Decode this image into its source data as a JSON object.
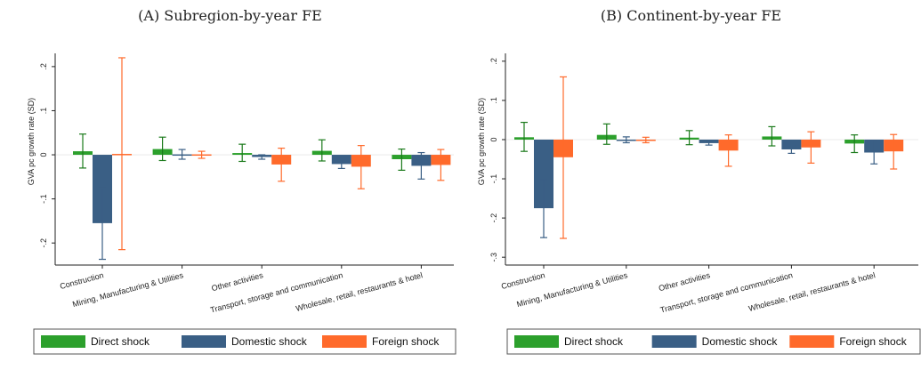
{
  "charts": [
    {
      "panel_title": "(A) Subregion-by-year FE",
      "ylabel": "GVA pc growth rate (SD)",
      "legend": [
        "Direct shock",
        "Domestic shock",
        "Foreign shock"
      ]
    },
    {
      "panel_title": "(B) Continent-by-year FE",
      "ylabel": "GVA pc growth rate (SD)",
      "legend": [
        "Direct shock",
        "Domestic shock",
        "Foreign shock"
      ]
    }
  ],
  "colors": {
    "direct": "#2ca02c",
    "domestic": "#3a5f85",
    "foreign": "#ff6a2b",
    "direct_ci": "#1b7a1b",
    "domestic_ci": "#3a5f85",
    "foreign_ci": "#ff6a2b"
  },
  "chart_data": [
    {
      "type": "bar",
      "title": "(A) Subregion-by-year FE",
      "ylabel": "GVA pc growth rate (SD)",
      "ylim": [
        -0.25,
        0.23
      ],
      "yticks": [
        -0.2,
        -0.1,
        0,
        0.1,
        0.2
      ],
      "ytick_labels": [
        "-.2",
        "-.1",
        "0",
        ".1",
        ".2"
      ],
      "categories": [
        "Construction",
        "Mining, Manufacturing & Utilities",
        "Other activities",
        "Transport, storage and communication",
        "Wholesale, retail, restaurants & hotel"
      ],
      "series": [
        {
          "name": "Direct shock",
          "values": [
            0.008,
            0.013,
            0.004,
            0.009,
            -0.01
          ],
          "ci_low": [
            -0.03,
            -0.013,
            -0.015,
            -0.014,
            -0.035
          ],
          "ci_high": [
            0.047,
            0.04,
            0.024,
            0.034,
            0.013
          ]
        },
        {
          "name": "Domestic shock",
          "values": [
            -0.155,
            0.001,
            -0.005,
            -0.021,
            -0.025
          ],
          "ci_low": [
            -0.237,
            -0.01,
            -0.01,
            -0.031,
            -0.055
          ],
          "ci_high": [
            -0.075,
            0.012,
            0.0,
            -0.011,
            0.005
          ]
        },
        {
          "name": "Foreign shock",
          "values": [
            0.002,
            0.001,
            -0.022,
            -0.027,
            -0.023
          ],
          "ci_low": [
            -0.215,
            -0.008,
            -0.06,
            -0.077,
            -0.058
          ],
          "ci_high": [
            0.22,
            0.008,
            0.015,
            0.021,
            0.012
          ]
        }
      ],
      "grid": false,
      "legend_position": "bottom"
    },
    {
      "type": "bar",
      "title": "(B) Continent-by-year FE",
      "ylabel": "GVA pc growth rate (SD)",
      "ylim": [
        -0.32,
        0.22
      ],
      "yticks": [
        -0.3,
        -0.2,
        -0.1,
        0,
        0.1,
        0.2
      ],
      "ytick_labels": [
        "-.3",
        "-.2",
        "-.1",
        "0",
        ".1",
        ".2"
      ],
      "categories": [
        "Construction",
        "Mining, Manufacturing & Utilities",
        "Other activities",
        "Transport, storage and communication",
        "Wholesale, retail, restaurants & hotel"
      ],
      "series": [
        {
          "name": "Direct shock",
          "values": [
            0.006,
            0.012,
            0.005,
            0.008,
            -0.01
          ],
          "ci_low": [
            -0.03,
            -0.012,
            -0.013,
            -0.016,
            -0.033
          ],
          "ci_high": [
            0.044,
            0.04,
            0.023,
            0.033,
            0.012
          ]
        },
        {
          "name": "Domestic shock",
          "values": [
            -0.175,
            -0.001,
            -0.009,
            -0.025,
            -0.033
          ],
          "ci_low": [
            -0.25,
            -0.008,
            -0.014,
            -0.035,
            -0.062
          ],
          "ci_high": [
            -0.102,
            0.007,
            -0.004,
            -0.015,
            -0.003
          ]
        },
        {
          "name": "Foreign shock",
          "values": [
            -0.045,
            -0.001,
            -0.028,
            -0.02,
            -0.03
          ],
          "ci_low": [
            -0.252,
            -0.008,
            -0.068,
            -0.06,
            -0.075
          ],
          "ci_high": [
            0.16,
            0.006,
            0.012,
            0.02,
            0.013
          ]
        }
      ],
      "grid": false,
      "legend_position": "bottom"
    }
  ]
}
